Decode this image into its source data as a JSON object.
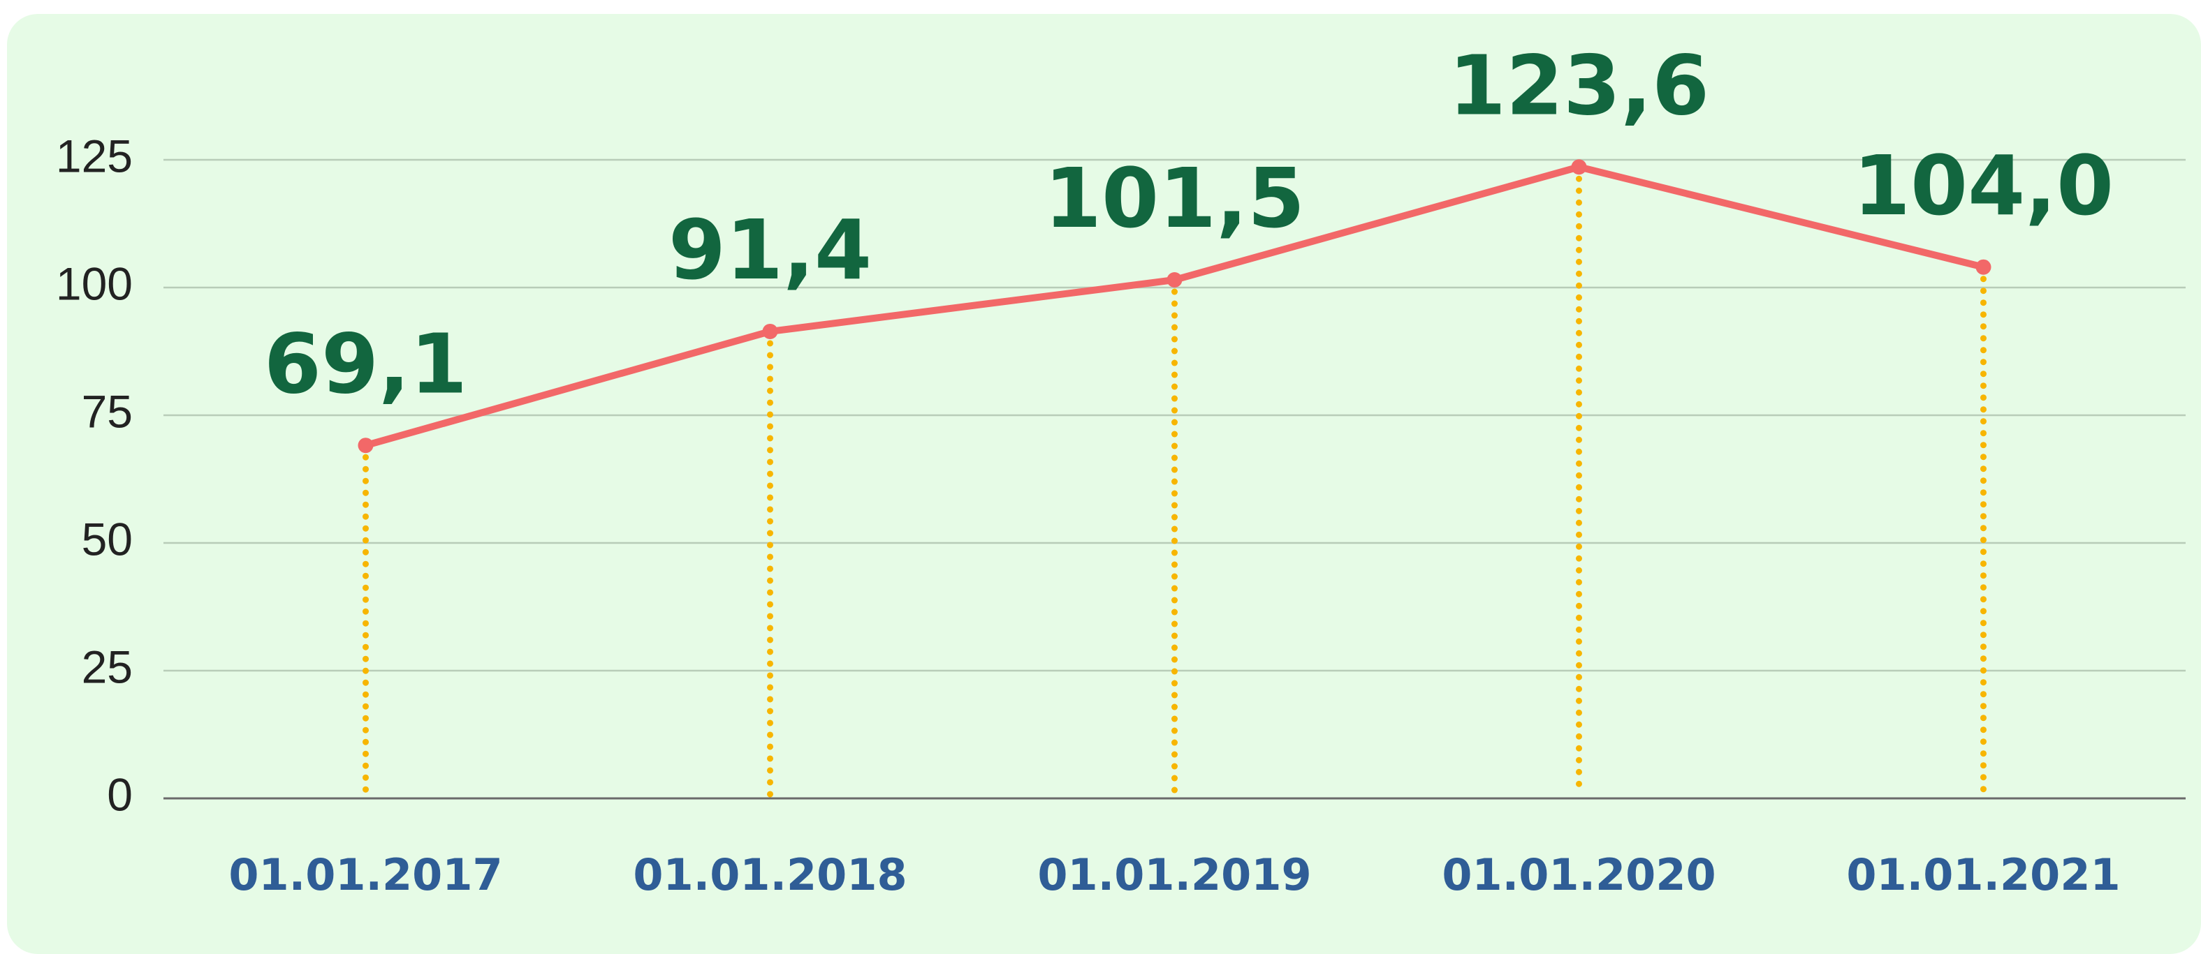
{
  "chart_data": {
    "type": "line",
    "categories": [
      "01.01.2017",
      "01.01.2018",
      "01.01.2019",
      "01.01.2020",
      "01.01.2021"
    ],
    "series": [
      {
        "color": "#f26868",
        "values": [
          69.1,
          91.4,
          101.5,
          123.6,
          104.0
        ],
        "value_labels": [
          "69,1",
          "91,4",
          "101,5",
          "123,6",
          "104,0"
        ]
      }
    ],
    "ylim": [
      0,
      125
    ],
    "yticks": [
      0,
      25,
      50,
      75,
      100,
      125
    ],
    "grid": true,
    "drop_line_color": "#f7b500"
  }
}
